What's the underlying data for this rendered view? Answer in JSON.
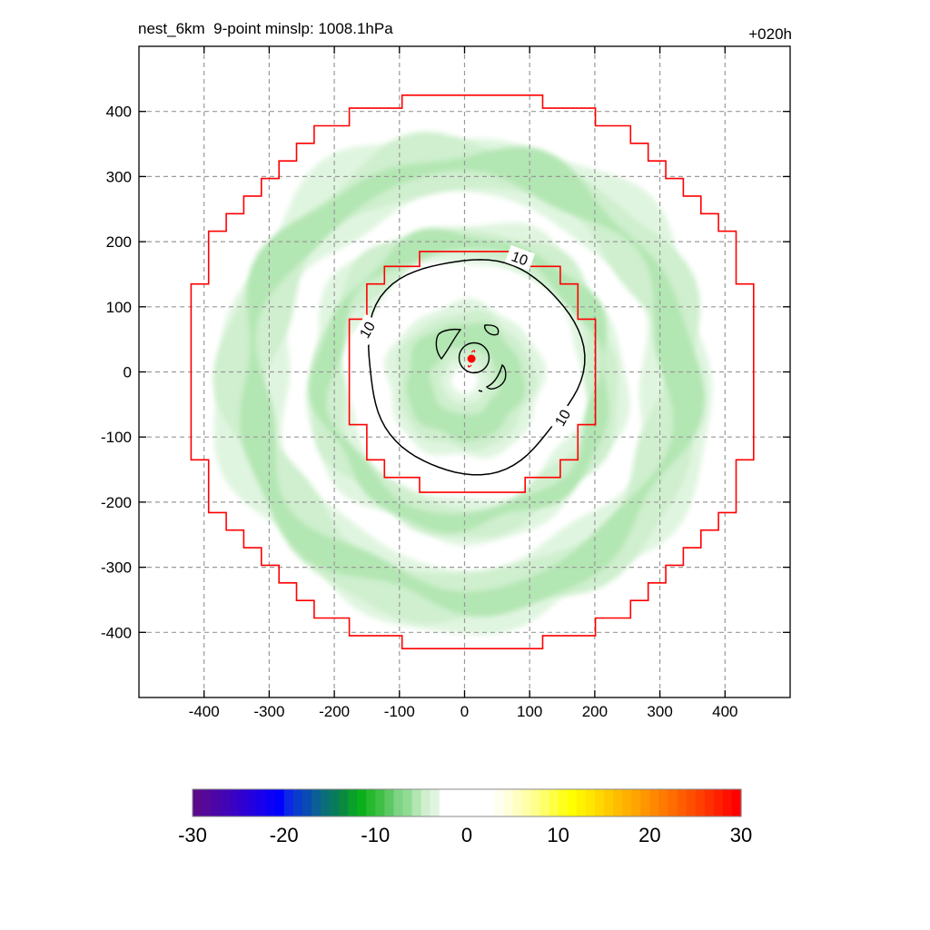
{
  "chart_data": {
    "type": "heatmap",
    "title_left": "nest_6km  9-point minslp: 1008.1hPa",
    "title_right": "+020h",
    "xlim": [
      -500,
      500
    ],
    "ylim": [
      -500,
      500
    ],
    "xticks": [
      -400,
      -300,
      -200,
      -100,
      0,
      100,
      200,
      300,
      400
    ],
    "yticks": [
      -400,
      -300,
      -200,
      -100,
      0,
      100,
      200,
      300,
      400
    ],
    "xtick_labels": [
      "-400",
      "-300",
      "-200",
      "-100",
      "0",
      "100",
      "200",
      "300",
      "400"
    ],
    "ytick_labels": [
      "400",
      "300",
      "200",
      "100",
      "0",
      "-100",
      "-200",
      "-300",
      "-400"
    ],
    "grid": true,
    "grid_style": "dashed",
    "storm_center": {
      "x": 12,
      "y": 20,
      "color": "#ff0000",
      "symbol": "hurricane-icon"
    },
    "contour_lines": [
      {
        "level": 10,
        "label": "10",
        "description": "closed contour roughly circular radius ~160",
        "label_positions": [
          {
            "x": 85,
            "y": 175
          },
          {
            "x": -150,
            "y": 65
          },
          {
            "x": 150,
            "y": -70
          }
        ]
      }
    ],
    "shaded_rings": [
      {
        "name": "inner-core",
        "r_inner": 20,
        "r_outer": 120,
        "value_range": [
          -6,
          -4
        ]
      },
      {
        "name": "middle-ring",
        "r_inner": 185,
        "r_outer": 245,
        "value_range": [
          -8,
          -4
        ]
      },
      {
        "name": "outer-ring",
        "r_inner": 285,
        "r_outer": 380,
        "value_range": [
          -8,
          -4
        ]
      }
    ],
    "domain_boundaries": [
      {
        "name": "inner-nest",
        "color": "#ff0000",
        "half_width": 185
      },
      {
        "name": "outer-nest",
        "color": "#ff0000",
        "half_width": 425
      }
    ],
    "colorbar": {
      "min": -30,
      "max": 30,
      "tick_labels": [
        "-30",
        "-20",
        "-10",
        "0",
        "10",
        "20",
        "30"
      ],
      "colors": [
        "#5a0a8c",
        "#55089a",
        "#4c06a6",
        "#4304b4",
        "#3a02c2",
        "#2f00d0",
        "#2400de",
        "#1a00ea",
        "#0c00f6",
        "#0000ff",
        "#0a28e6",
        "#0a3ccc",
        "#0a4ab4",
        "#0b5e96",
        "#0b6e78",
        "#0a7a5c",
        "#098a3e",
        "#09a02c",
        "#0ab01a",
        "#26b82e",
        "#3dc044",
        "#5cc864",
        "#7ed484",
        "#90dc94",
        "#b2e6b2",
        "#cfefce",
        "#e0f5e0",
        "#ffffff",
        "#ffffff",
        "#ffffff",
        "#ffffff",
        "#ffffff",
        "#ffffff",
        "#fffff0",
        "#ffffdc",
        "#ffffc4",
        "#ffffaa",
        "#ffff8c",
        "#ffff6a",
        "#ffff44",
        "#ffff1e",
        "#ffff00",
        "#fff200",
        "#ffe600",
        "#ffd800",
        "#ffca00",
        "#ffbd00",
        "#ffb000",
        "#ffa400",
        "#ff9600",
        "#ff8800",
        "#ff7a00",
        "#ff6c00",
        "#ff5e00",
        "#ff5000",
        "#ff4000",
        "#ff3000",
        "#ff2000",
        "#ff1000",
        "#ff0000"
      ]
    }
  }
}
